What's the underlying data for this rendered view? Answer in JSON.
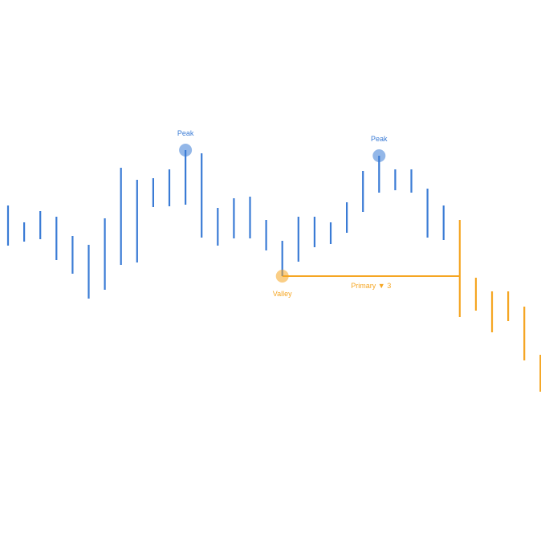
{
  "colors": {
    "up_trend": "#3a7bd5",
    "down_trend": "#f5a623"
  },
  "chart_data": {
    "type": "bar",
    "variant": "price-range-bars",
    "title": "",
    "xlabel": "",
    "ylabel": "",
    "grid": false,
    "legend": "none",
    "ylim": [
      0,
      674
    ],
    "bars": [
      {
        "high": 418,
        "low": 368,
        "trend": "up"
      },
      {
        "high": 397,
        "low": 373,
        "trend": "up"
      },
      {
        "high": 411,
        "low": 376,
        "trend": "up"
      },
      {
        "high": 404,
        "low": 350,
        "trend": "up"
      },
      {
        "high": 380,
        "low": 333,
        "trend": "up"
      },
      {
        "high": 369,
        "low": 302,
        "trend": "up"
      },
      {
        "high": 402,
        "low": 313,
        "trend": "up"
      },
      {
        "high": 465,
        "low": 344,
        "trend": "up"
      },
      {
        "high": 450,
        "low": 347,
        "trend": "up"
      },
      {
        "high": 452,
        "low": 416,
        "trend": "up"
      },
      {
        "high": 463,
        "low": 417,
        "trend": "up"
      },
      {
        "high": 487,
        "low": 419,
        "trend": "up"
      },
      {
        "high": 483,
        "low": 378,
        "trend": "up"
      },
      {
        "high": 415,
        "low": 368,
        "trend": "up"
      },
      {
        "high": 427,
        "low": 377,
        "trend": "up"
      },
      {
        "high": 429,
        "low": 377,
        "trend": "up"
      },
      {
        "high": 400,
        "low": 362,
        "trend": "up"
      },
      {
        "high": 374,
        "low": 330,
        "trend": "up"
      },
      {
        "high": 404,
        "low": 348,
        "trend": "up"
      },
      {
        "high": 404,
        "low": 366,
        "trend": "up"
      },
      {
        "high": 397,
        "low": 370,
        "trend": "up"
      },
      {
        "high": 422,
        "low": 384,
        "trend": "up"
      },
      {
        "high": 461,
        "low": 410,
        "trend": "up"
      },
      {
        "high": 480,
        "low": 434,
        "trend": "up"
      },
      {
        "high": 463,
        "low": 437,
        "trend": "up"
      },
      {
        "high": 463,
        "low": 434,
        "trend": "up"
      },
      {
        "high": 439,
        "low": 378,
        "trend": "up"
      },
      {
        "high": 418,
        "low": 375,
        "trend": "up"
      },
      {
        "high": 400,
        "low": 279,
        "trend": "down"
      },
      {
        "high": 328,
        "low": 287,
        "trend": "down"
      },
      {
        "high": 311,
        "low": 260,
        "trend": "down"
      },
      {
        "high": 311,
        "low": 274,
        "trend": "down"
      },
      {
        "high": 292,
        "low": 225,
        "trend": "down"
      },
      {
        "high": 232,
        "low": 186,
        "trend": "down"
      }
    ],
    "annotations": [
      {
        "label": "Peak",
        "bar": 11,
        "y": 487,
        "color": "up_trend",
        "label_position": "above"
      },
      {
        "label": "Peak",
        "bar": 23,
        "y": 480,
        "color": "up_trend",
        "label_position": "above"
      },
      {
        "label": "Valley",
        "bar": 17,
        "y": 330,
        "color": "down_trend",
        "label_position": "below"
      }
    ],
    "level_line": {
      "y": 330,
      "from_bar": 17,
      "to_bar": 28,
      "label": "Primary ▼ 3",
      "color": "down_trend"
    }
  }
}
